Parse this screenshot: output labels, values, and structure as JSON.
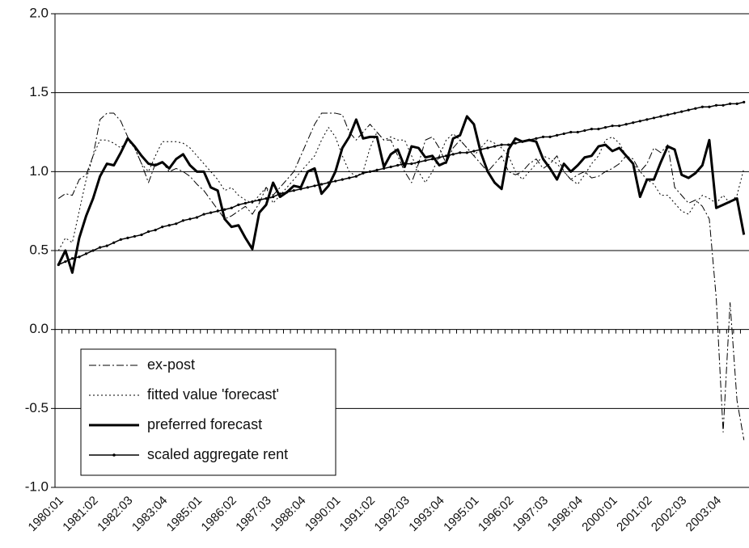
{
  "chart_data": {
    "type": "line",
    "categories": [
      "1980:01",
      null,
      null,
      null,
      null,
      "1981:02",
      null,
      null,
      null,
      null,
      "1982:03",
      null,
      null,
      null,
      null,
      "1983:04",
      null,
      null,
      null,
      null,
      "1985:01",
      null,
      null,
      null,
      null,
      "1986:02",
      null,
      null,
      null,
      null,
      "1987:03",
      null,
      null,
      null,
      null,
      "1988:04",
      null,
      null,
      null,
      null,
      "1990:01",
      null,
      null,
      null,
      null,
      "1991:02",
      null,
      null,
      null,
      null,
      "1992:03",
      null,
      null,
      null,
      null,
      "1993:04",
      null,
      null,
      null,
      null,
      "1995:01",
      null,
      null,
      null,
      null,
      "1996:02",
      null,
      null,
      null,
      null,
      "1997:03",
      null,
      null,
      null,
      null,
      "1998:04",
      null,
      null,
      null,
      null,
      "2000:01",
      null,
      null,
      null,
      null,
      "2001:02",
      null,
      null,
      null,
      null,
      "2002:03",
      null,
      null,
      null,
      null,
      "2003:04",
      null,
      null,
      null,
      null
    ],
    "ylim": [
      -1,
      2
    ],
    "yticks": [
      {
        "value": -1,
        "label": "-1.0"
      },
      {
        "value": -0.5,
        "label": "-0.5"
      },
      {
        "value": 0,
        "label": "0.0"
      },
      {
        "value": 0.5,
        "label": "0.5"
      },
      {
        "value": 1,
        "label": "1.0"
      },
      {
        "value": 1.5,
        "label": "1.5"
      },
      {
        "value": 2,
        "label": "2.0"
      }
    ],
    "grid": true,
    "legend": "lower left",
    "series": [
      {
        "name": "ex-post",
        "color": "#000000",
        "dash": "9,3,2,3",
        "width": 1,
        "values": [
          0.83,
          0.86,
          0.85,
          0.95,
          0.98,
          1.1,
          1.33,
          1.37,
          1.37,
          1.32,
          1.22,
          1.15,
          1.05,
          0.93,
          1.05,
          1.06,
          1.0,
          1.02,
          1.0,
          0.97,
          0.92,
          0.88,
          0.82,
          0.76,
          0.7,
          0.72,
          0.75,
          0.78,
          0.73,
          0.8,
          0.9,
          0.85,
          0.9,
          0.95,
          1.0,
          1.1,
          1.2,
          1.3,
          1.37,
          1.37,
          1.37,
          1.36,
          1.25,
          1.2,
          1.25,
          1.3,
          1.25,
          1.2,
          1.2,
          1.1,
          1.0,
          0.93,
          1.05,
          1.2,
          1.22,
          1.15,
          1.05,
          1.15,
          1.2,
          1.15,
          1.1,
          1.05,
          1.0,
          1.05,
          1.1,
          1.0,
          0.98,
          1.0,
          1.05,
          1.08,
          1.02,
          1.05,
          1.1,
          1.0,
          0.95,
          0.98,
          1.0,
          0.96,
          0.97,
          1.0,
          1.02,
          1.05,
          1.1,
          1.08,
          1.0,
          1.05,
          1.15,
          1.12,
          1.17,
          0.9,
          0.85,
          0.8,
          0.82,
          0.78,
          0.7,
          0.2,
          -0.65,
          0.17,
          -0.45,
          -0.7
        ]
      },
      {
        "name": "fitted value 'forecast'",
        "color": "#000000",
        "dash": "2,3",
        "width": 1,
        "values": [
          0.5,
          0.58,
          0.55,
          0.75,
          0.95,
          1.1,
          1.2,
          1.2,
          1.18,
          1.15,
          1.2,
          1.15,
          1.05,
          1.0,
          1.1,
          1.19,
          1.19,
          1.19,
          1.18,
          1.15,
          1.1,
          1.05,
          1.0,
          0.95,
          0.88,
          0.9,
          0.85,
          0.82,
          0.8,
          0.85,
          0.9,
          0.8,
          0.85,
          0.9,
          0.95,
          1.0,
          1.05,
          1.1,
          1.2,
          1.28,
          1.22,
          1.1,
          1.0,
          0.97,
          1.0,
          1.15,
          1.25,
          1.2,
          1.22,
          1.2,
          1.2,
          1.1,
          1.0,
          0.93,
          1.0,
          1.1,
          1.2,
          1.24,
          1.2,
          1.15,
          1.1,
          1.15,
          1.2,
          1.18,
          1.15,
          1.1,
          1.0,
          0.95,
          1.0,
          1.05,
          1.1,
          1.08,
          1.05,
          1.0,
          0.95,
          0.92,
          0.98,
          1.05,
          1.1,
          1.2,
          1.22,
          1.18,
          1.1,
          1.05,
          1.0,
          0.95,
          0.92,
          0.85,
          0.85,
          0.8,
          0.75,
          0.73,
          0.8,
          0.85,
          0.83,
          0.8,
          0.85,
          0.8,
          0.85,
          1.02
        ]
      },
      {
        "name": "preferred forecast",
        "color": "#000000",
        "width": 3,
        "values": [
          0.41,
          0.5,
          0.36,
          0.58,
          0.72,
          0.83,
          0.97,
          1.05,
          1.04,
          1.12,
          1.21,
          1.16,
          1.1,
          1.05,
          1.04,
          1.06,
          1.02,
          1.08,
          1.11,
          1.04,
          1.0,
          1.0,
          0.9,
          0.88,
          0.7,
          0.65,
          0.66,
          0.58,
          0.51,
          0.74,
          0.79,
          0.93,
          0.84,
          0.87,
          0.91,
          0.9,
          1.0,
          1.02,
          0.86,
          0.91,
          1.0,
          1.15,
          1.22,
          1.33,
          1.21,
          1.22,
          1.22,
          1.03,
          1.11,
          1.14,
          1.03,
          1.16,
          1.15,
          1.09,
          1.1,
          1.04,
          1.06,
          1.21,
          1.23,
          1.35,
          1.3,
          1.12,
          1.0,
          0.93,
          0.89,
          1.14,
          1.21,
          1.19,
          1.2,
          1.19,
          1.08,
          1.02,
          0.95,
          1.05,
          1.0,
          1.04,
          1.09,
          1.1,
          1.16,
          1.17,
          1.13,
          1.15,
          1.1,
          1.05,
          0.84,
          0.95,
          0.95,
          1.06,
          1.16,
          1.14,
          0.98,
          0.96,
          0.99,
          1.04,
          1.2,
          0.77,
          0.79,
          0.81,
          0.83,
          0.6
        ]
      },
      {
        "name": "scaled aggregate rent",
        "color": "#000000",
        "width": 1.5,
        "markers": true,
        "values": [
          0.41,
          0.43,
          0.45,
          0.46,
          0.48,
          0.5,
          0.52,
          0.53,
          0.55,
          0.57,
          0.58,
          0.59,
          0.6,
          0.62,
          0.63,
          0.65,
          0.66,
          0.67,
          0.69,
          0.7,
          0.71,
          0.73,
          0.74,
          0.75,
          0.76,
          0.77,
          0.79,
          0.8,
          0.81,
          0.82,
          0.83,
          0.84,
          0.86,
          0.87,
          0.88,
          0.89,
          0.9,
          0.91,
          0.92,
          0.93,
          0.94,
          0.95,
          0.96,
          0.97,
          0.99,
          1.0,
          1.01,
          1.02,
          1.03,
          1.04,
          1.05,
          1.05,
          1.06,
          1.07,
          1.08,
          1.09,
          1.1,
          1.11,
          1.12,
          1.12,
          1.13,
          1.14,
          1.15,
          1.16,
          1.17,
          1.17,
          1.18,
          1.19,
          1.2,
          1.21,
          1.22,
          1.22,
          1.23,
          1.24,
          1.25,
          1.25,
          1.26,
          1.27,
          1.27,
          1.28,
          1.29,
          1.29,
          1.3,
          1.31,
          1.32,
          1.33,
          1.34,
          1.35,
          1.36,
          1.37,
          1.38,
          1.39,
          1.4,
          1.41,
          1.41,
          1.42,
          1.42,
          1.43,
          1.43,
          1.44
        ]
      }
    ]
  }
}
